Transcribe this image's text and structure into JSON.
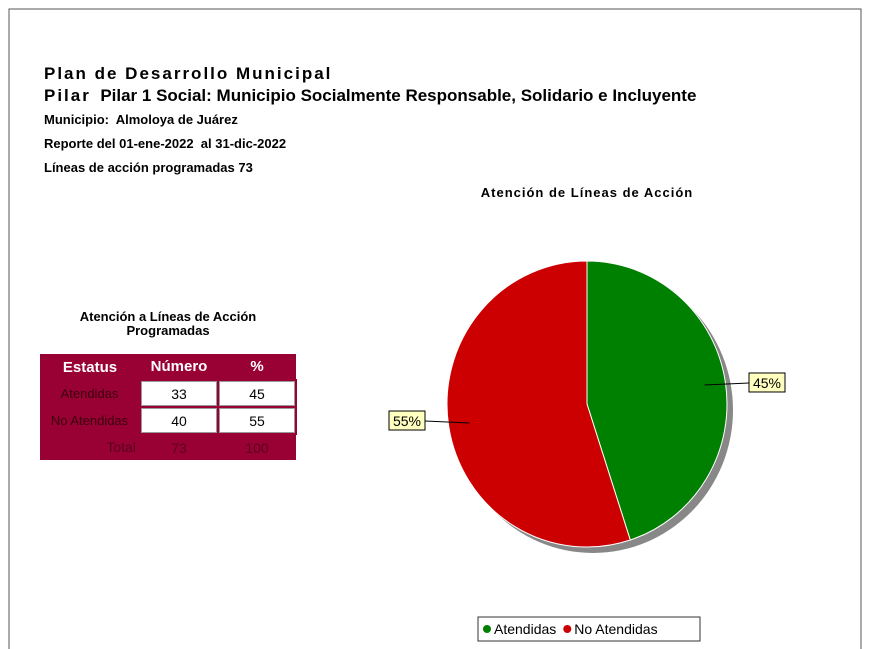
{
  "header": {
    "title": "Plan de Desarrollo Municipal",
    "pilar_label": "Pilar",
    "pilar": "Pilar 1 Social: Municipio Socialmente Responsable, Solidario e Incluyente",
    "municipio_label": "Municipio:",
    "municipio": "Almoloya de Juárez",
    "reporte": "Reporte del 01-ene-2022  al 31-dic-2022",
    "lineas_label": "Líneas de acción programadas",
    "lineas": 73
  },
  "table": {
    "title": "Atención a Líneas de Acción Programadas",
    "columns": [
      "Estatus",
      "Número",
      "%"
    ],
    "rows": [
      [
        "Atendidas",
        33,
        45
      ],
      [
        "No Atendidas",
        40,
        55
      ]
    ],
    "total": [
      "Total",
      73,
      100
    ]
  },
  "chart_data": {
    "type": "pie",
    "title": "Atención de Líneas de Acción",
    "categories": [
      "Atendidas",
      "No Atendidas"
    ],
    "values": [
      45,
      55
    ],
    "value_labels": [
      "45%",
      "55%"
    ],
    "colors": [
      "#008000",
      "#cc0000"
    ]
  }
}
